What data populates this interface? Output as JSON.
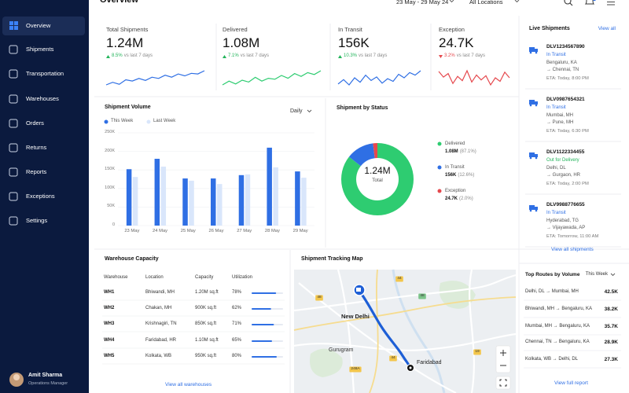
{
  "sidebar": {
    "items": [
      "Overview",
      "Shipments",
      "Transportation",
      "Warehouses",
      "Orders",
      "Returns",
      "Reports",
      "Exceptions",
      "Settings"
    ],
    "active": 0,
    "user": {
      "name": "Amit Sharma",
      "role": "Operations Manager"
    }
  },
  "header": {
    "title": "Overview",
    "date_range": "23 May - 29 May 24",
    "location": "All Locations"
  },
  "kpis": [
    {
      "title": "Total Shipments",
      "value": "1.24M",
      "direction": "up",
      "change": "8.5%",
      "note": "vs last 7 days",
      "color": "#2f6fe4",
      "trend": [
        40,
        44,
        41,
        48,
        46,
        50,
        47,
        52,
        50,
        55,
        52,
        57,
        54,
        58,
        57,
        62
      ]
    },
    {
      "title": "Delivered",
      "value": "1.08M",
      "direction": "up",
      "change": "7.1%",
      "note": "vs last 7 days",
      "color": "#2ecc71",
      "trend": [
        42,
        46,
        43,
        47,
        45,
        50,
        46,
        49,
        48,
        52,
        49,
        54,
        51,
        55,
        53,
        57
      ]
    },
    {
      "title": "In Transit",
      "value": "156K",
      "direction": "up",
      "change": "10.3%",
      "note": "vs last 7 days",
      "color": "#2f6fe4",
      "trend": [
        45,
        50,
        44,
        52,
        47,
        55,
        49,
        53,
        46,
        51,
        48,
        56,
        52,
        58,
        55,
        60
      ]
    },
    {
      "title": "Exception",
      "value": "24.7K",
      "direction": "down",
      "change": "3.2%",
      "note": "vs last 7 days",
      "color": "#e5484d",
      "trend": [
        55,
        47,
        52,
        38,
        48,
        42,
        56,
        40,
        50,
        43,
        49,
        36,
        46,
        41,
        54,
        46
      ]
    }
  ],
  "live_shipments": {
    "title": "Live Shipments",
    "link": "View all",
    "items": [
      {
        "id": "DLV1234567890",
        "status": "In Transit",
        "status_color": "#2f6fe4",
        "from": "Bengaluru, KA",
        "to": "→ Chennai, TN",
        "eta": "ETA: Today, 8:00 PM"
      },
      {
        "id": "DLV0987654321",
        "status": "In Transit",
        "status_color": "#2f6fe4",
        "from": "Mumbai, MH",
        "to": "→ Pune, MH",
        "eta": "ETA: Today, 6:30 PM"
      },
      {
        "id": "DLV1122334455",
        "status": "Out for Delivery",
        "status_color": "#22b45a",
        "from": "Delhi, DL",
        "to": "→ Gurgaon, HR",
        "eta": "ETA: Today, 2:00 PM"
      },
      {
        "id": "DLV9988776655",
        "status": "In Transit",
        "status_color": "#2f6fe4",
        "from": "Hyderabad, TG",
        "to": "→ Vijayawada, AP",
        "eta": "ETA: Tomorrow, 11:00 AM"
      }
    ],
    "footer_link": "View all shipments"
  },
  "shipment_volume": {
    "type": "bar",
    "title": "Shipment Volume",
    "period": "Daily",
    "categories": [
      "23 May",
      "24 May",
      "25 May",
      "26 May",
      "27 May",
      "28 May",
      "29 May"
    ],
    "series": [
      {
        "name": "This Week",
        "color": "#2f6fe4",
        "values": [
          152000,
          180000,
          127000,
          127000,
          136000,
          210000,
          146000
        ]
      },
      {
        "name": "Last Week",
        "color": "#d9e6fb",
        "values": [
          131000,
          159000,
          121000,
          112000,
          138000,
          157000,
          129000
        ]
      }
    ],
    "ylim": [
      0,
      250000
    ],
    "yticks": [
      0,
      {
        "value": 50000,
        "label": "50K"
      },
      {
        "value": 100000,
        "label": "100K"
      },
      {
        "value": 150000,
        "label": "150K"
      },
      {
        "value": 200000,
        "label": "200K"
      },
      {
        "value": 250000,
        "label": "250K"
      }
    ],
    "grid": true
  },
  "shipment_status": {
    "type": "pie",
    "title": "Shipment by Status",
    "center_value": "1.24M",
    "center_label": "Total",
    "categories": [
      "Delivered",
      "In Transit",
      "Exception"
    ],
    "counts": [
      "1.08M",
      "156K",
      "24.7K"
    ],
    "values": [
      87.1,
      12.6,
      2.0
    ],
    "value_labels": [
      "(87.1%)",
      "(12.6%)",
      "(2.0%)"
    ],
    "colors": [
      "#2ecc71",
      "#2f6fe4",
      "#e5484d"
    ]
  },
  "warehouse_capacity": {
    "title": "Warehouse Capacity",
    "columns": [
      "Warehouse",
      "Location",
      "Capacity",
      "Utilization"
    ],
    "rows": [
      [
        "WH1",
        "Bhiwandi, MH",
        "1.20M sq.ft",
        "78%"
      ],
      [
        "WH2",
        "Chakan, MH",
        "900K sq.ft",
        "62%"
      ],
      [
        "WH3",
        "Krishnagiri, TN",
        "850K sq.ft",
        "71%"
      ],
      [
        "WH4",
        "Faridabad, HR",
        "1.10M sq.ft",
        "65%"
      ],
      [
        "WH5",
        "Kolkata, WB",
        "950K sq.ft",
        "80%"
      ]
    ],
    "utilization": [
      78,
      62,
      71,
      65,
      80
    ],
    "link": "View all warehouses"
  },
  "map": {
    "title": "Shipment Tracking Map",
    "places": [
      "New Delhi",
      "Gurugram",
      "Faridabad"
    ],
    "road_badges": [
      "44",
      "48",
      "48",
      "248A",
      "44",
      "19"
    ]
  },
  "top_routes": {
    "title": "Top Routes by Volume",
    "period": "This Week",
    "rows": [
      [
        "Delhi, DL → Mumbai, MH",
        "42.5K"
      ],
      [
        "Bhiwandi, MH → Bengaluru, KA",
        "38.2K"
      ],
      [
        "Mumbai, MH → Bengaluru, KA",
        "35.7K"
      ],
      [
        "Chennai, TN → Bengaluru, KA",
        "28.9K"
      ],
      [
        "Kolkata, WB → Delhi, DL",
        "27.3K"
      ]
    ],
    "link": "View full report"
  }
}
